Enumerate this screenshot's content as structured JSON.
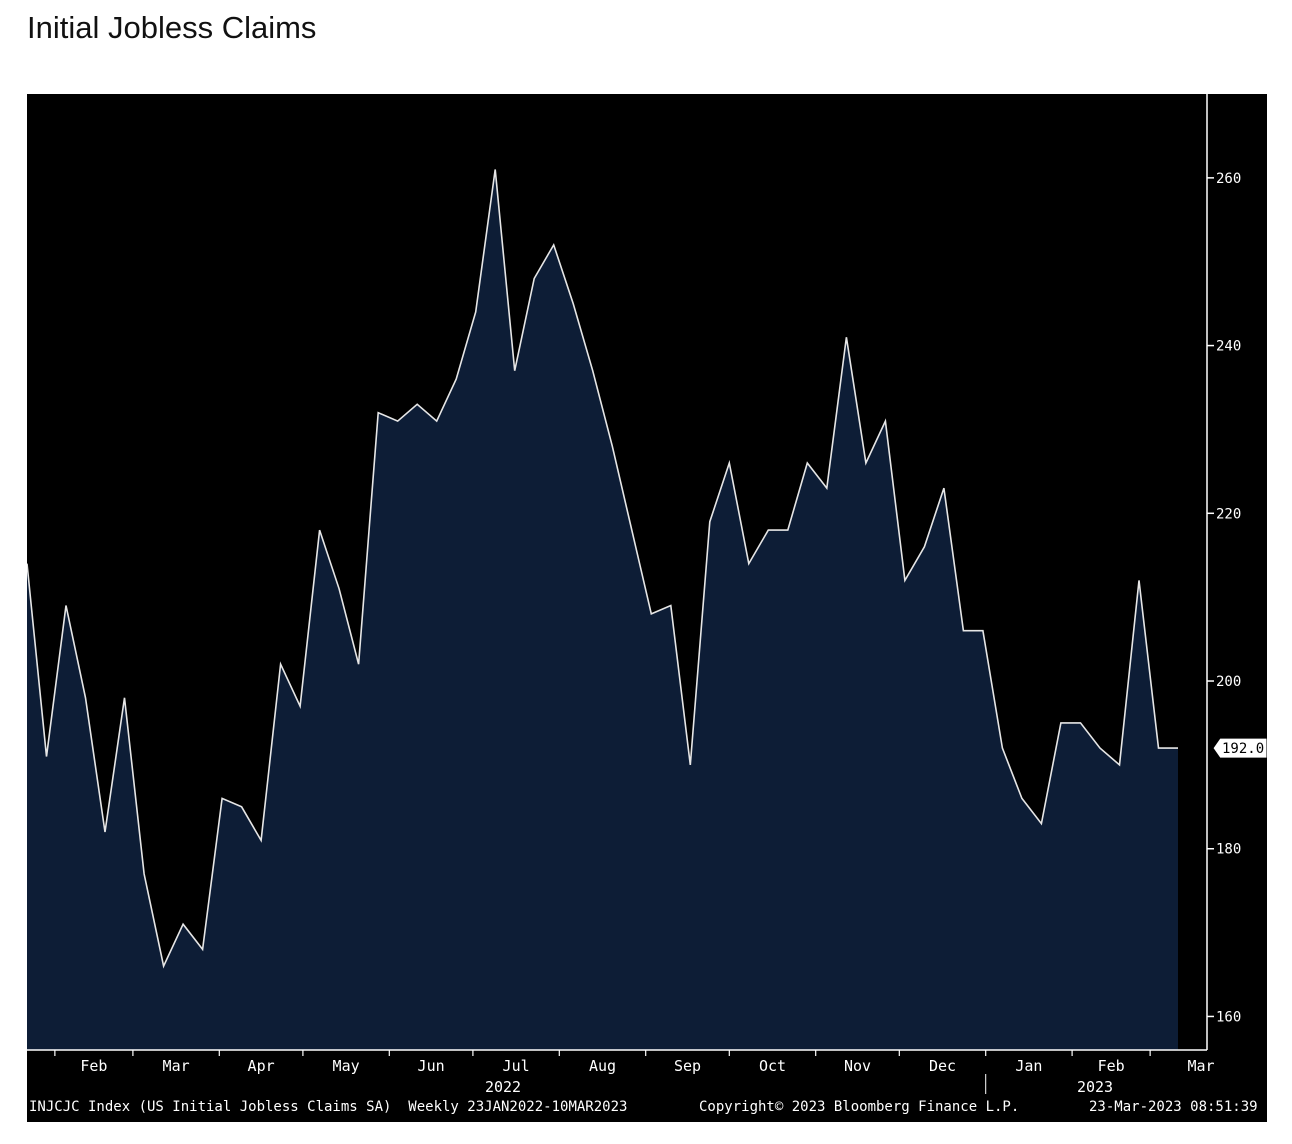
{
  "page": {
    "title": "Initial Jobless Claims"
  },
  "colors": {
    "background": "#000000",
    "area_fill": "#0d1d36",
    "line": "#e6e6e6",
    "axis": "#ffffff"
  },
  "chart_data": {
    "type": "area",
    "title": "Initial Jobless Claims",
    "xlabel": "",
    "ylabel": "",
    "ylim": [
      156,
      270
    ],
    "yticks": [
      160,
      180,
      200,
      220,
      240,
      260
    ],
    "grid": false,
    "legend": "none",
    "last_value_label": "192.0",
    "x_month_labels": [
      "Feb",
      "Mar",
      "Apr",
      "May",
      "Jun",
      "Jul",
      "Aug",
      "Sep",
      "Oct",
      "Nov",
      "Dec",
      "Jan",
      "Feb",
      "Mar"
    ],
    "x_year_labels": [
      "2022",
      "2023"
    ],
    "x": [
      "2022-01-22",
      "2022-01-29",
      "2022-02-05",
      "2022-02-12",
      "2022-02-19",
      "2022-02-26",
      "2022-03-05",
      "2022-03-12",
      "2022-03-19",
      "2022-03-26",
      "2022-04-02",
      "2022-04-09",
      "2022-04-16",
      "2022-04-23",
      "2022-04-30",
      "2022-05-07",
      "2022-05-14",
      "2022-05-21",
      "2022-05-28",
      "2022-06-04",
      "2022-06-11",
      "2022-06-18",
      "2022-06-25",
      "2022-07-02",
      "2022-07-09",
      "2022-07-16",
      "2022-07-23",
      "2022-07-30",
      "2022-08-06",
      "2022-08-13",
      "2022-08-20",
      "2022-08-27",
      "2022-09-03",
      "2022-09-10",
      "2022-09-17",
      "2022-09-24",
      "2022-10-01",
      "2022-10-08",
      "2022-10-15",
      "2022-10-22",
      "2022-10-29",
      "2022-11-05",
      "2022-11-12",
      "2022-11-19",
      "2022-11-26",
      "2022-12-03",
      "2022-12-10",
      "2022-12-17",
      "2022-12-24",
      "2022-12-31",
      "2023-01-07",
      "2023-01-14",
      "2023-01-21",
      "2023-01-28",
      "2023-02-04",
      "2023-02-11",
      "2023-02-18",
      "2023-02-25",
      "2023-03-04",
      "2023-03-11"
    ],
    "series": [
      {
        "values": [
          214,
          191,
          209,
          198,
          182,
          198,
          177,
          166,
          171,
          168,
          186,
          185,
          181,
          202,
          197,
          218,
          211,
          202,
          232,
          231,
          233,
          231,
          236,
          244,
          261,
          237,
          248,
          252,
          245,
          237,
          228,
          218,
          208,
          209,
          190,
          219,
          226,
          214,
          218,
          218,
          226,
          223,
          241,
          226,
          231,
          212,
          216,
          223,
          206,
          206,
          192,
          186,
          183,
          195,
          195,
          192,
          190,
          212,
          192,
          192
        ]
      }
    ]
  },
  "footer": {
    "left": "INJCJC Index (US Initial Jobless Claims SA)  Weekly 23JAN2022-10MAR2023",
    "center": "Copyright© 2023 Bloomberg Finance L.P.",
    "right": "23-Mar-2023 08:51:39"
  }
}
